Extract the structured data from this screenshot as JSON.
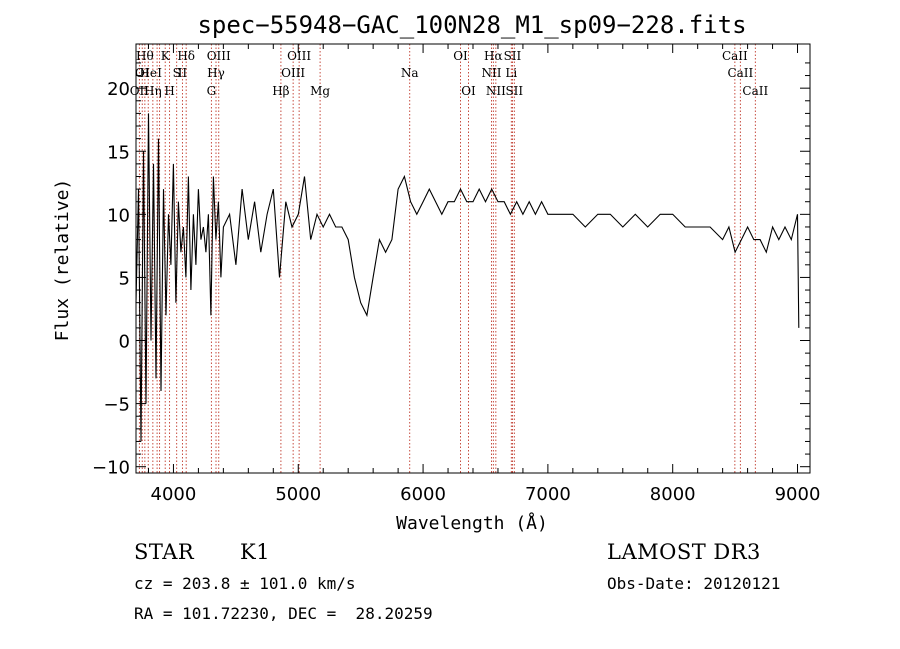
{
  "chart_data": {
    "type": "line",
    "title": "spec−55948−GAC_100N28_M1_sp09−228.fits",
    "xlabel": "Wavelength (Å)",
    "ylabel": "Flux (relative)",
    "xlim": [
      3700,
      9100
    ],
    "ylim": [
      -10.5,
      23.5
    ],
    "x_ticks": [
      4000,
      5000,
      6000,
      7000,
      8000,
      9000
    ],
    "y_ticks": [
      -10,
      -5,
      0,
      5,
      10,
      15,
      20
    ],
    "series": [
      {
        "name": "flux",
        "x": [
          3700,
          3720,
          3740,
          3760,
          3780,
          3800,
          3820,
          3840,
          3860,
          3880,
          3900,
          3920,
          3940,
          3960,
          3980,
          4000,
          4020,
          4040,
          4060,
          4080,
          4100,
          4120,
          4140,
          4160,
          4180,
          4200,
          4220,
          4240,
          4260,
          4280,
          4300,
          4320,
          4340,
          4360,
          4380,
          4400,
          4450,
          4500,
          4550,
          4600,
          4650,
          4700,
          4750,
          4800,
          4850,
          4900,
          4950,
          5000,
          5050,
          5100,
          5150,
          5200,
          5250,
          5300,
          5350,
          5400,
          5450,
          5500,
          5550,
          5600,
          5650,
          5700,
          5750,
          5800,
          5850,
          5900,
          5950,
          6000,
          6050,
          6100,
          6150,
          6200,
          6250,
          6300,
          6350,
          6400,
          6450,
          6500,
          6550,
          6600,
          6650,
          6700,
          6750,
          6800,
          6850,
          6900,
          6950,
          7000,
          7100,
          7200,
          7300,
          7400,
          7500,
          7600,
          7700,
          7800,
          7900,
          8000,
          8100,
          8200,
          8300,
          8400,
          8450,
          8500,
          8550,
          8600,
          8650,
          8700,
          8750,
          8800,
          8850,
          8900,
          8950,
          9000,
          9010
        ],
        "y": [
          3,
          12,
          -8,
          15,
          -5,
          18,
          0,
          14,
          -3,
          16,
          -4,
          12,
          2,
          10,
          6,
          14,
          3,
          11,
          7,
          9,
          5,
          13,
          4,
          10,
          6,
          12,
          8,
          9,
          7,
          10,
          2,
          13,
          8,
          11,
          5,
          9,
          10,
          6,
          12,
          8,
          11,
          7,
          10,
          12,
          5,
          11,
          9,
          10,
          13,
          8,
          10,
          9,
          10,
          9,
          9,
          8,
          5,
          3,
          2,
          5,
          8,
          7,
          8,
          12,
          13,
          11,
          10,
          11,
          12,
          11,
          10,
          11,
          11,
          12,
          11,
          11,
          12,
          11,
          12,
          11,
          11,
          10,
          11,
          10,
          11,
          10,
          11,
          10,
          10,
          10,
          9,
          10,
          10,
          9,
          10,
          9,
          10,
          10,
          9,
          9,
          9,
          8,
          9,
          7,
          8,
          9,
          8,
          8,
          7,
          9,
          8,
          9,
          8,
          10,
          1
        ]
      }
    ],
    "lines": [
      {
        "w": 3727,
        "label": "OII",
        "row": 2
      },
      {
        "w": 3750,
        "label": "OI",
        "row": 1
      },
      {
        "w": 3771,
        "label": "Hθ",
        "row": 0
      },
      {
        "w": 3798,
        "label": "He",
        "row": 1
      },
      {
        "w": 3835,
        "label": "Hη",
        "row": 2
      },
      {
        "w": 3869,
        "label": "",
        "row": 0
      },
      {
        "w": 3889,
        "label": "I",
        "row": 1
      },
      {
        "w": 3934,
        "label": "K",
        "row": 0
      },
      {
        "w": 3969,
        "label": "H",
        "row": 2
      },
      {
        "w": 4026,
        "label": "S",
        "row": 1
      },
      {
        "w": 4072,
        "label": "II",
        "row": 1
      },
      {
        "w": 4102,
        "label": "Hδ",
        "row": 0
      },
      {
        "w": 4304,
        "label": "G",
        "row": 2
      },
      {
        "w": 4341,
        "label": "Hγ",
        "row": 1
      },
      {
        "w": 4363,
        "label": "OIII",
        "row": 0
      },
      {
        "w": 4861,
        "label": "Hβ",
        "row": 2
      },
      {
        "w": 4959,
        "label": "OIII",
        "row": 1
      },
      {
        "w": 5007,
        "label": "OIII",
        "row": 0
      },
      {
        "w": 5175,
        "label": "Mg",
        "row": 2
      },
      {
        "w": 5893,
        "label": "Na",
        "row": 1
      },
      {
        "w": 6300,
        "label": "OI",
        "row": 0
      },
      {
        "w": 6364,
        "label": "OI",
        "row": 2
      },
      {
        "w": 6548,
        "label": "NII",
        "row": 1
      },
      {
        "w": 6563,
        "label": "Hα",
        "row": 0
      },
      {
        "w": 6583,
        "label": "NII",
        "row": 2
      },
      {
        "w": 6707,
        "label": "Li",
        "row": 1
      },
      {
        "w": 6716,
        "label": "SII",
        "row": 0
      },
      {
        "w": 6731,
        "label": "SII",
        "row": 2
      },
      {
        "w": 8498,
        "label": "CaII",
        "row": 0
      },
      {
        "w": 8542,
        "label": "CaII",
        "row": 1
      },
      {
        "w": 8662,
        "label": "CaII",
        "row": 2
      }
    ]
  },
  "info": {
    "class": "STAR",
    "subclass": "K1",
    "survey": "LAMOST DR3",
    "cz": "cz = 203.8 ± 101.0 km/s",
    "obs_date": "Obs-Date: 20120121",
    "radec": "RA = 101.72230, DEC =  28.20259"
  },
  "colors": {
    "axis": "#000000",
    "spectrum": "#000000",
    "lines": "#c0392b"
  }
}
